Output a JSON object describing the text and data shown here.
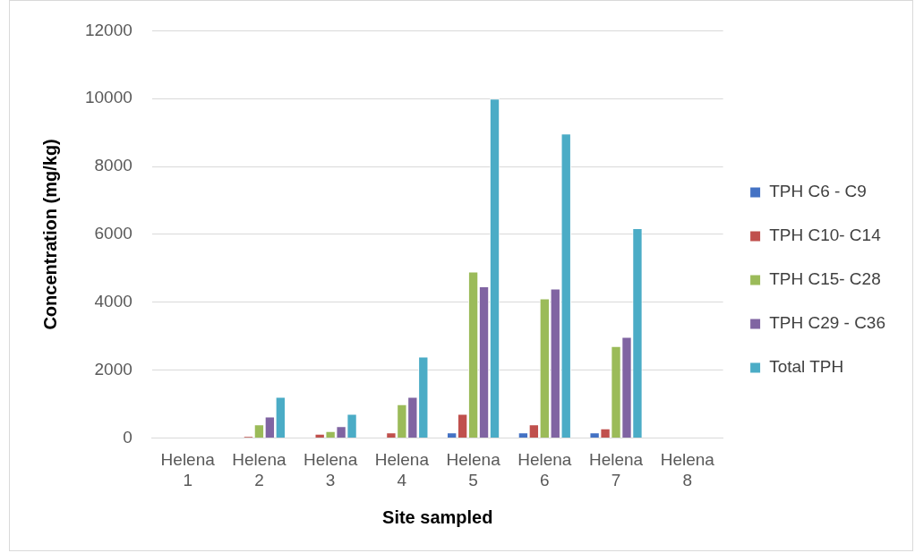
{
  "chart_data": {
    "type": "bar",
    "xlabel": "Site sampled",
    "ylabel": "Concentration (mg/kg)",
    "categories": [
      "Helena 1",
      "Helena 2",
      "Helena 3",
      "Helena 4",
      "Helena 5",
      "Helena 6",
      "Helena 7",
      "Helena 8"
    ],
    "series": [
      {
        "name": "TPH C6 - C9",
        "color": "#4472c4",
        "values": [
          0,
          0,
          0,
          0,
          160,
          160,
          160,
          0
        ]
      },
      {
        "name": "TPH C10- C14",
        "color": "#c0504d",
        "values": [
          0,
          50,
          120,
          160,
          710,
          400,
          280,
          0
        ]
      },
      {
        "name": "TPH C15- C28",
        "color": "#9bbb59",
        "values": [
          0,
          400,
          200,
          990,
          4900,
          4110,
          2710,
          0
        ]
      },
      {
        "name": "TPH C29 - C36",
        "color": "#8064a2",
        "values": [
          0,
          630,
          350,
          1210,
          4470,
          4400,
          2980,
          0
        ]
      },
      {
        "name": "Total TPH",
        "color": "#4bacc6",
        "values": [
          0,
          1210,
          710,
          2400,
          10000,
          8970,
          6180,
          0
        ]
      }
    ],
    "ylim": [
      0,
      12000
    ],
    "yticks": [
      0,
      2000,
      4000,
      6000,
      8000,
      10000,
      12000
    ],
    "grid": "y",
    "legend": "right"
  }
}
